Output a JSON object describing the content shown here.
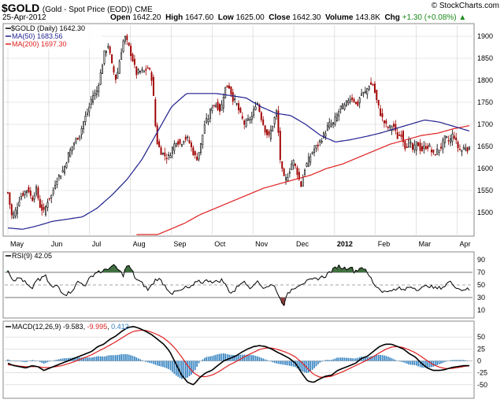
{
  "header": {
    "symbol": "$GOLD",
    "description": "(Gold - Spot Price (EOD))",
    "exchange": "CME",
    "date": "25-Apr-2012",
    "copyright": "© StockCharts.com",
    "open_label": "Open",
    "open": "1642.20",
    "high_label": "High",
    "high": "1647.60",
    "low_label": "Low",
    "low": "1625.00",
    "close_label": "Close",
    "close": "1642.30",
    "volume_label": "Volume",
    "volume": "143.8K",
    "chg_label": "Chg",
    "chg": "+1.30 (+0.08%)",
    "chg_arrow": "▲"
  },
  "price_panel": {
    "legend_main": "$GOLD (Daily) 1642.30",
    "legend_ma50": "MA(50) 1683.56",
    "legend_ma200": "MA(200) 1697.30",
    "colors": {
      "up": "#000000",
      "down": "#a00000",
      "ma50": "#1f1f8f",
      "ma200": "#e02020",
      "grid": "#d0d0d0"
    }
  },
  "rsi_panel": {
    "legend": "RSI(9) 42.05",
    "colors": {
      "line": "#000000",
      "fill": "#3f6f3f"
    }
  },
  "macd_panel": {
    "legend_prefix": "MACD(12,26,9)",
    "legend_macd": "-9.583",
    "legend_signal": "-9.995",
    "legend_hist": "0.412",
    "colors": {
      "macd": "#000000",
      "signal": "#e02020",
      "hist": "#2f7fbf"
    }
  },
  "chart_data": [
    {
      "type": "candlestick",
      "title": "$GOLD (Daily) 1642.30",
      "x_months": [
        "May",
        "Jun",
        "Jul",
        "Aug",
        "Sep",
        "Oct",
        "Nov",
        "Dec",
        "2012",
        "Feb",
        "Mar",
        "Apr"
      ],
      "ylim": [
        1450,
        1925
      ],
      "y_ticks": [
        "1500",
        "1550",
        "1600",
        "1650",
        "1700",
        "1750",
        "1800",
        "1850",
        "1900"
      ],
      "anchors_close": [
        1545,
        1490,
        1505,
        1535,
        1545,
        1555,
        1528,
        1555,
        1515,
        1500,
        1530,
        1540,
        1575,
        1585,
        1600,
        1630,
        1650,
        1665,
        1680,
        1710,
        1730,
        1765,
        1770,
        1810,
        1860,
        1880,
        1830,
        1800,
        1855,
        1900,
        1880,
        1850,
        1815,
        1820,
        1820,
        1830,
        1800,
        1665,
        1640,
        1630,
        1625,
        1645,
        1665,
        1655,
        1670,
        1665,
        1640,
        1620,
        1650,
        1700,
        1715,
        1745,
        1745,
        1730,
        1780,
        1790,
        1760,
        1745,
        1720,
        1700,
        1710,
        1720,
        1755,
        1720,
        1690,
        1670,
        1700,
        1730,
        1605,
        1570,
        1590,
        1620,
        1595,
        1560,
        1600,
        1620,
        1640,
        1650,
        1665,
        1680,
        1700,
        1700,
        1720,
        1740,
        1740,
        1760,
        1760,
        1740,
        1770,
        1770,
        1790,
        1790,
        1750,
        1720,
        1700,
        1690,
        1700,
        1670,
        1680,
        1650,
        1660,
        1640,
        1660,
        1640,
        1650,
        1650,
        1630,
        1640,
        1650,
        1670,
        1660,
        1680,
        1650,
        1640,
        1650,
        1642
      ],
      "ma50_anchors": [
        1465,
        1462,
        1470,
        1480,
        1485,
        1490,
        1510,
        1540,
        1575,
        1620,
        1680,
        1740,
        1770,
        1770,
        1770,
        1765,
        1760,
        1740,
        1725,
        1720,
        1700,
        1675,
        1660,
        1665,
        1672,
        1680,
        1690,
        1700,
        1710,
        1705,
        1695,
        1685
      ],
      "ma200_anchors": [
        1430,
        1445,
        1460,
        1475,
        1495,
        1510,
        1525,
        1540,
        1555,
        1565,
        1575,
        1585,
        1600,
        1610,
        1625,
        1640,
        1655,
        1665,
        1675,
        1680,
        1690,
        1697
      ]
    },
    {
      "type": "line",
      "title": "RSI(9) 42.05",
      "ylim": [
        0,
        100
      ],
      "y_ticks": [
        "10",
        "30",
        "50",
        "70",
        "90"
      ],
      "anchors": [
        75,
        60,
        58,
        62,
        55,
        48,
        42,
        60,
        58,
        66,
        52,
        45,
        50,
        40,
        35,
        38,
        45,
        55,
        52,
        50,
        62,
        68,
        72,
        70,
        76,
        78,
        80,
        72,
        66,
        82,
        74,
        60,
        55,
        50,
        42,
        50,
        60,
        58,
        50,
        42,
        36,
        40,
        40,
        46,
        45,
        48,
        58,
        54,
        56,
        58,
        54,
        56,
        58,
        48,
        38,
        40,
        50,
        56,
        50,
        46,
        56,
        52,
        46,
        48,
        50,
        46,
        28,
        20,
        36,
        44,
        48,
        52,
        54,
        56,
        58,
        60,
        62,
        64,
        70,
        74,
        80,
        78,
        76,
        80,
        72,
        74,
        80,
        70,
        62,
        50,
        45,
        40,
        38,
        44,
        40,
        46,
        40,
        46,
        48,
        44,
        44,
        46,
        50,
        46,
        44,
        46,
        48,
        55,
        52,
        46,
        42,
        44,
        42
      ],
      "hlines": [
        30,
        50,
        70
      ]
    },
    {
      "type": "line",
      "title": "MACD(12,26,9)",
      "ylim": [
        -75,
        80
      ],
      "y_ticks": [
        "-50",
        "-25",
        "0",
        "25",
        "50"
      ],
      "macd_anchors": [
        -5,
        -10,
        -12,
        -15,
        -10,
        -12,
        -20,
        -15,
        -10,
        -5,
        0,
        5,
        10,
        15,
        20,
        30,
        35,
        45,
        52,
        62,
        70,
        72,
        68,
        62,
        55,
        45,
        35,
        20,
        -5,
        -30,
        -45,
        -50,
        -35,
        -25,
        -20,
        -10,
        0,
        5,
        10,
        18,
        25,
        30,
        32,
        30,
        25,
        18,
        12,
        5,
        -5,
        -25,
        -42,
        -45,
        -38,
        -32,
        -30,
        -20,
        -15,
        -10,
        -5,
        5,
        10,
        20,
        30,
        35,
        35,
        30,
        25,
        15,
        8,
        -5,
        -15,
        -20,
        -20,
        -18,
        -14,
        -12,
        -10,
        -10
      ],
      "signal_anchors": [
        -8,
        -9,
        -11,
        -12,
        -12,
        -12,
        -14,
        -14,
        -12,
        -10,
        -6,
        -2,
        3,
        8,
        13,
        20,
        26,
        33,
        40,
        48,
        56,
        62,
        64,
        64,
        60,
        55,
        48,
        38,
        25,
        8,
        -10,
        -25,
        -33,
        -33,
        -30,
        -24,
        -16,
        -8,
        -2,
        5,
        12,
        18,
        24,
        27,
        27,
        24,
        20,
        15,
        8,
        -3,
        -16,
        -28,
        -34,
        -34,
        -32,
        -27,
        -22,
        -16,
        -10,
        -4,
        2,
        9,
        17,
        24,
        29,
        30,
        28,
        23,
        17,
        9,
        0,
        -8,
        -13,
        -16,
        -16,
        -14,
        -12,
        -10
      ],
      "last_macd": -9.583,
      "last_signal": -9.995,
      "last_hist": 0.412
    }
  ]
}
